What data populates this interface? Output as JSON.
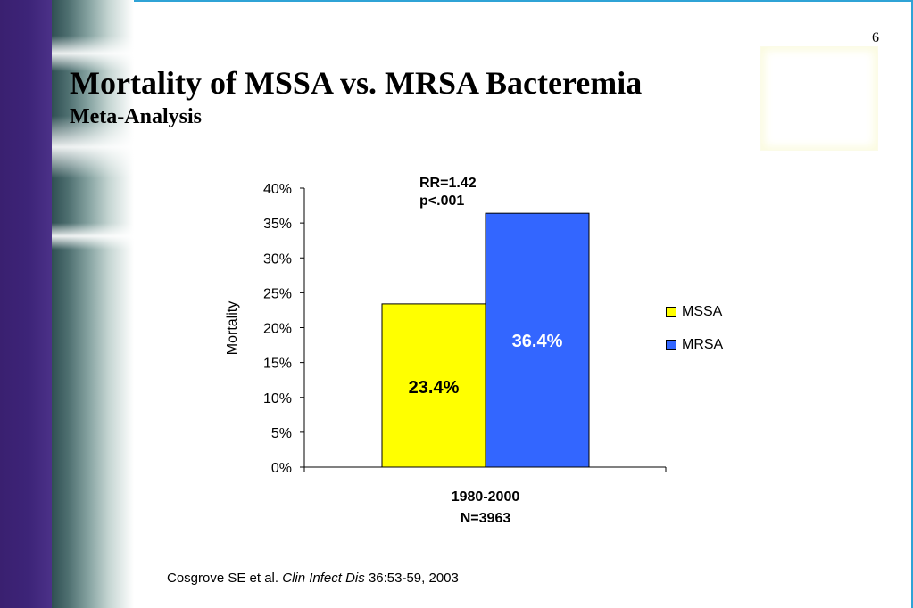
{
  "slide": {
    "number": "6",
    "title": "Mortality of MSSA vs. MRSA Bacteremia",
    "subtitle": "Meta-Analysis",
    "citation": {
      "authors": "Cosgrove SE et al.",
      "journal": "Clin Infect Dis",
      "ref": "36:53-59, 2003"
    }
  },
  "chart_data": {
    "type": "bar",
    "categories": [
      "1980-2000\nN=3963"
    ],
    "category_lines": [
      "1980-2000",
      "N=3963"
    ],
    "series": [
      {
        "name": "MSSA",
        "values": [
          23.4
        ],
        "color": "#ffff00",
        "label": "23.4%",
        "label_color": "#000000"
      },
      {
        "name": "MRSA",
        "values": [
          36.4
        ],
        "color": "#3366ff",
        "label": "36.4%",
        "label_color": "#ffffff"
      }
    ],
    "ylabel": "Mortality",
    "xlabel": "",
    "ylim": [
      0,
      40
    ],
    "yticks": [
      "0%",
      "5%",
      "10%",
      "15%",
      "20%",
      "25%",
      "30%",
      "35%",
      "40%"
    ],
    "annotation": [
      "RR=1.42",
      "p<.001"
    ],
    "legend_position": "right",
    "grid": false
  }
}
